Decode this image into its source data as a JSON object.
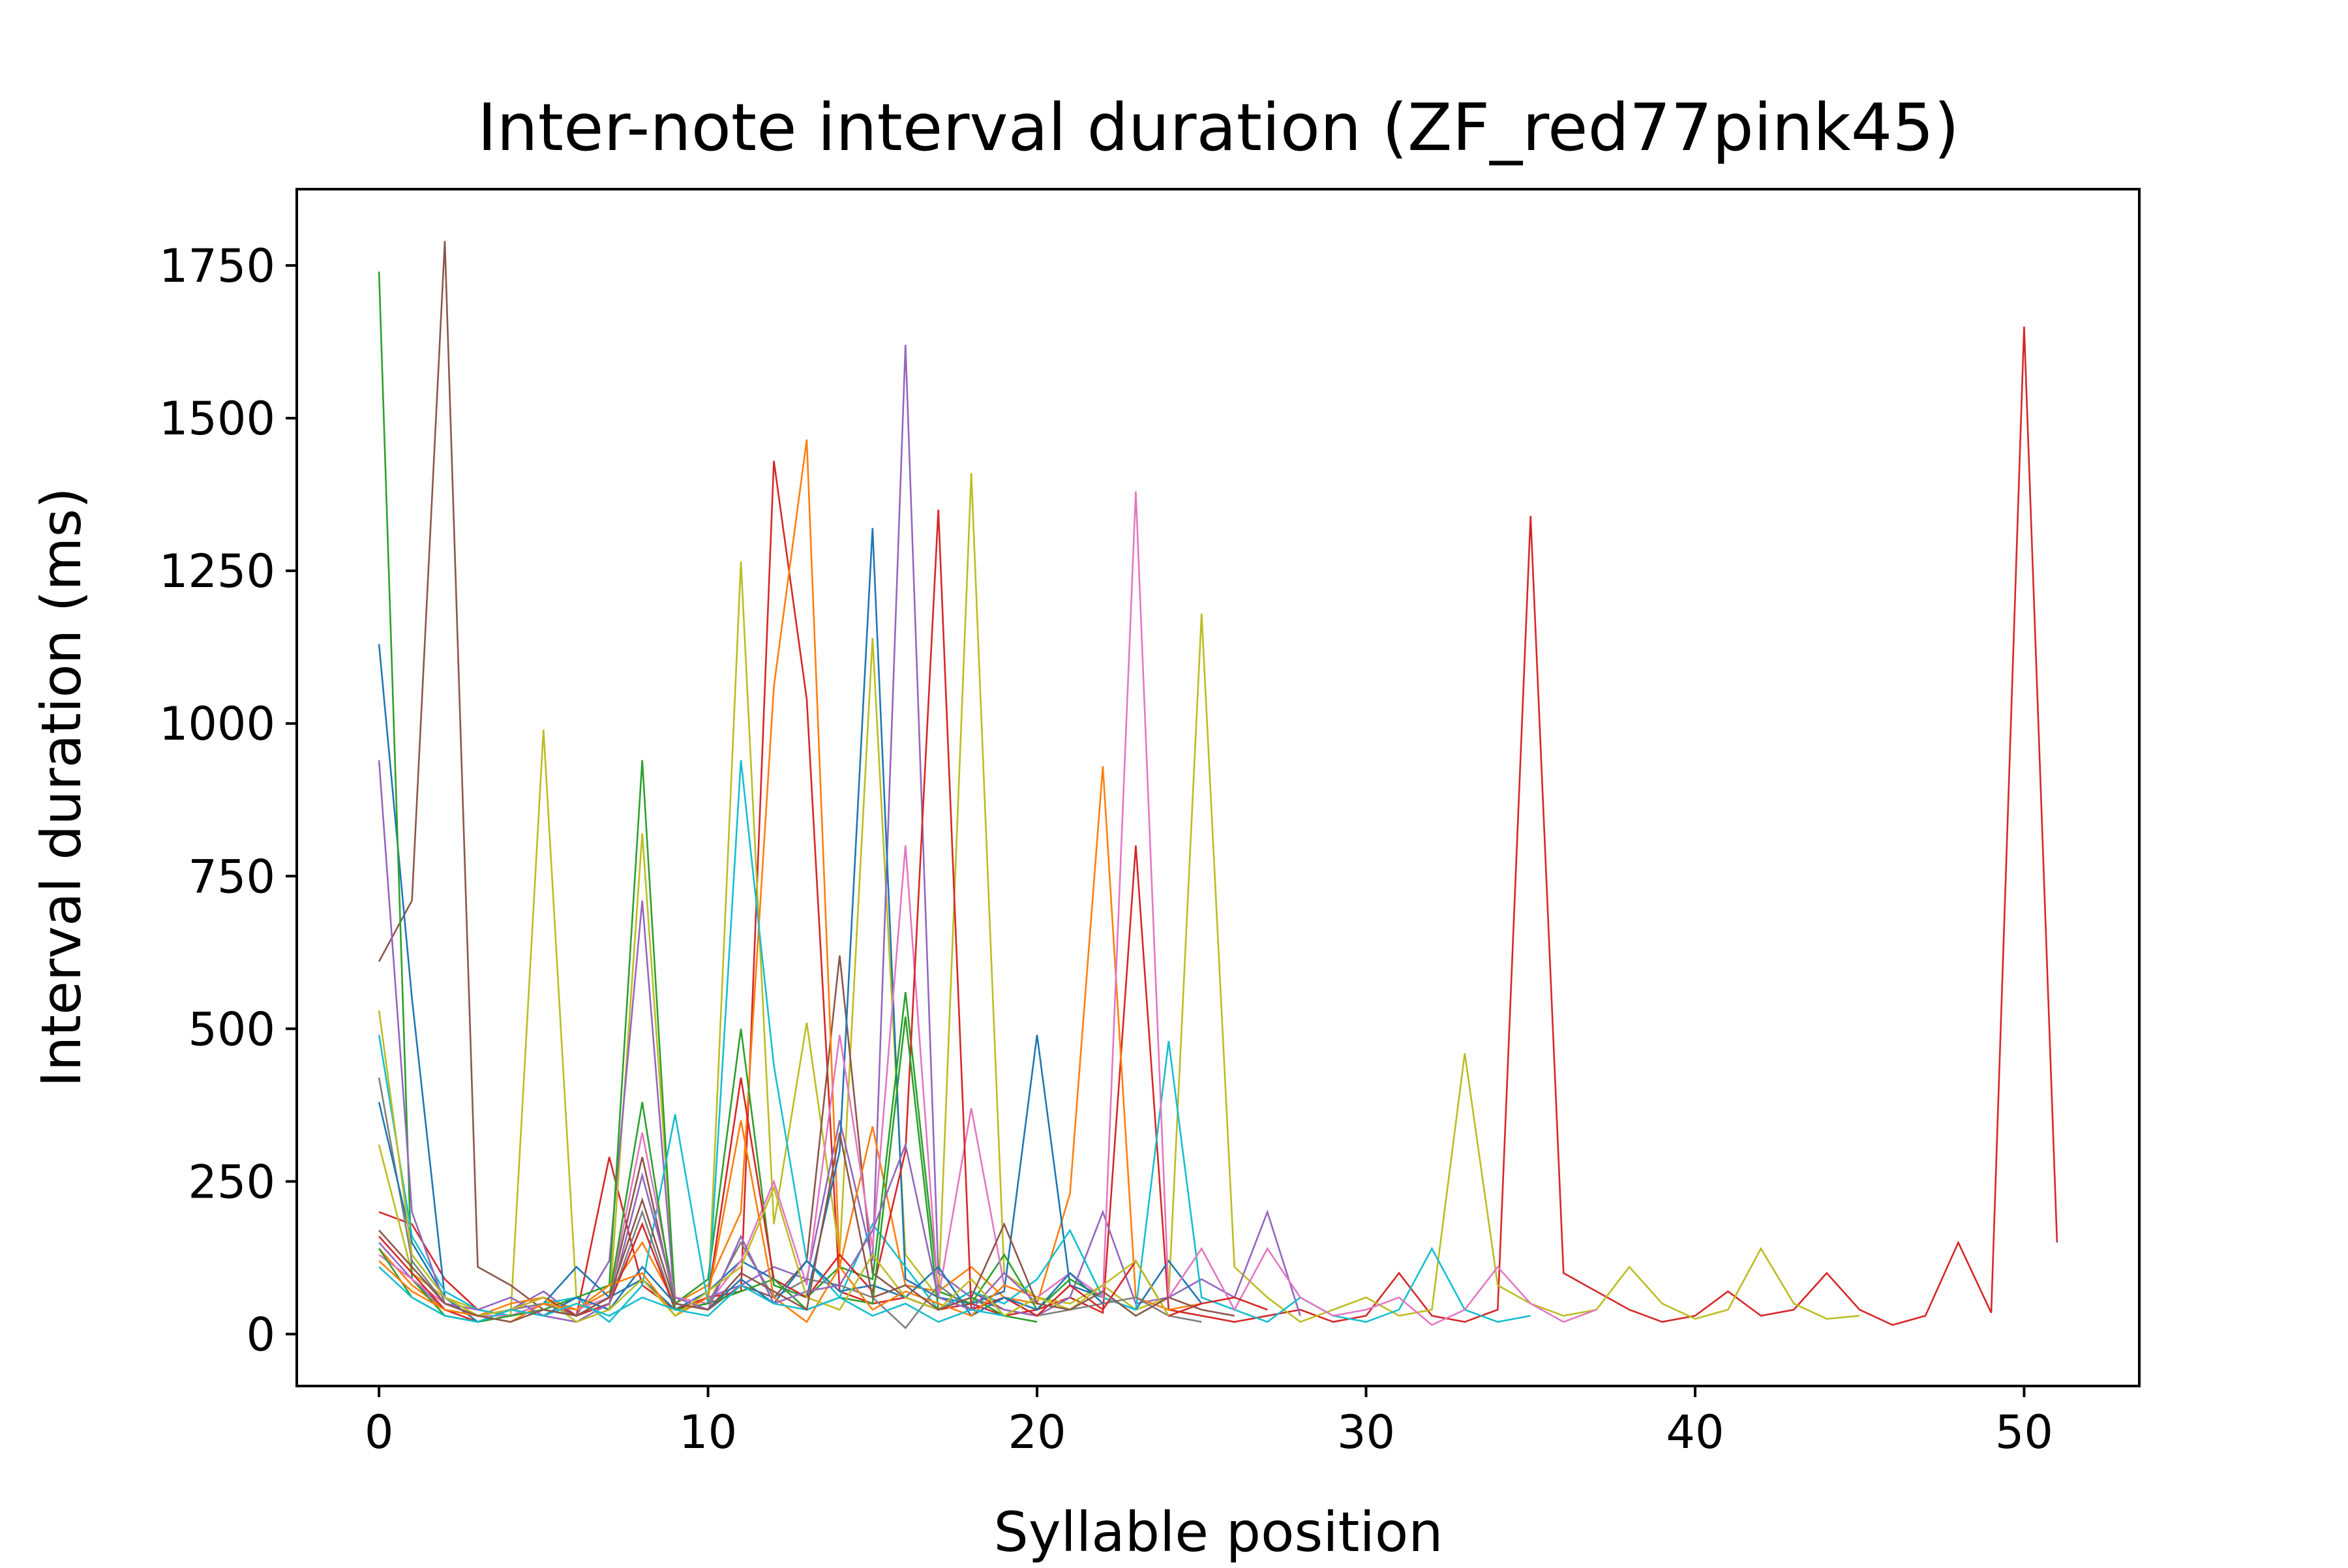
{
  "chart_data": {
    "type": "line",
    "title": "Inter-note interval duration (ZF_red77pink45)",
    "xlabel": "Syllable position",
    "ylabel": "Interval duration (ms)",
    "xlim": [
      -2.5,
      53.5
    ],
    "ylim": [
      -85,
      1875
    ],
    "xticks": [
      0,
      10,
      20,
      30,
      40,
      50
    ],
    "yticks": [
      0,
      250,
      500,
      750,
      1000,
      1250,
      1500,
      1750
    ],
    "grid": false,
    "legend": "none",
    "series_colors": [
      "#1f77b4",
      "#ff7f0e",
      "#2ca02c",
      "#d62728",
      "#9467bd",
      "#8c564b",
      "#e377c2",
      "#7f7f7f",
      "#bcbd22",
      "#17becf"
    ],
    "series": [
      {
        "color": "#d62728",
        "x": [
          0,
          1,
          2,
          3,
          4,
          5,
          6,
          7,
          8,
          9,
          10,
          11,
          12,
          13,
          14,
          15,
          16,
          17,
          18,
          19,
          20,
          21,
          22,
          23,
          24,
          25,
          26,
          27,
          28,
          29,
          30,
          31,
          32,
          33,
          34,
          35,
          36,
          37,
          38,
          39,
          40,
          41,
          42,
          43,
          44,
          45,
          46,
          47,
          48,
          49,
          50,
          51
        ],
        "values": [
          200,
          180,
          90,
          40,
          30,
          50,
          30,
          290,
          80,
          40,
          60,
          70,
          1430,
          1040,
          70,
          50,
          60,
          40,
          50,
          30,
          40,
          60,
          35,
          800,
          40,
          30,
          20,
          30,
          40,
          20,
          30,
          100,
          30,
          20,
          40,
          1340,
          100,
          70,
          40,
          20,
          30,
          70,
          30,
          40,
          100,
          40,
          15,
          30,
          150,
          35,
          1650,
          150
        ]
      },
      {
        "color": "#bcbd22",
        "x": [
          0,
          1,
          2,
          3,
          4,
          5,
          6,
          7,
          8,
          9,
          10,
          11,
          12,
          13,
          14,
          15,
          16,
          17,
          18,
          19,
          20,
          21,
          22,
          23,
          24,
          25,
          26,
          27,
          28,
          29,
          30,
          31,
          32,
          33,
          34,
          35,
          36,
          37,
          38,
          39,
          40,
          41,
          42,
          43,
          44,
          45
        ],
        "values": [
          310,
          100,
          60,
          40,
          30,
          990,
          60,
          40,
          820,
          60,
          50,
          1265,
          180,
          510,
          130,
          1140,
          130,
          60,
          1410,
          100,
          60,
          50,
          80,
          40,
          60,
          1180,
          110,
          60,
          20,
          40,
          60,
          30,
          40,
          460,
          80,
          50,
          30,
          40,
          110,
          50,
          25,
          40,
          140,
          50,
          25,
          30
        ]
      },
      {
        "color": "#8c564b",
        "x": [
          0,
          1,
          2,
          3,
          4,
          5,
          6,
          7,
          8,
          9,
          10,
          11,
          12,
          13,
          14,
          15,
          16,
          17,
          18,
          19,
          20
        ],
        "values": [
          610,
          710,
          1790,
          110,
          80,
          40,
          30,
          60,
          290,
          50,
          40,
          80,
          60,
          120,
          620,
          100,
          60,
          40,
          70,
          40,
          30
        ]
      },
      {
        "color": "#9467bd",
        "x": [
          0,
          1,
          2,
          3,
          4,
          5,
          6,
          7,
          8,
          9,
          10,
          11,
          12,
          13,
          14,
          15,
          16,
          17,
          18,
          19,
          20,
          21,
          22,
          23,
          24,
          25,
          26,
          27,
          28
        ],
        "values": [
          150,
          90,
          40,
          30,
          40,
          70,
          30,
          120,
          710,
          40,
          60,
          80,
          110,
          90,
          350,
          120,
          1620,
          100,
          60,
          40,
          30,
          60,
          200,
          50,
          60,
          90,
          60,
          200,
          30
        ]
      },
      {
        "color": "#ff7f0e",
        "x": [
          0,
          1,
          2,
          3,
          4,
          5,
          6,
          7,
          8,
          9,
          10,
          11,
          12,
          13,
          14,
          15,
          16,
          17,
          18,
          19,
          20,
          21,
          22,
          23,
          24,
          25
        ],
        "values": [
          140,
          80,
          40,
          30,
          50,
          60,
          40,
          70,
          150,
          50,
          80,
          200,
          1060,
          1465,
          110,
          340,
          80,
          70,
          110,
          60,
          50,
          230,
          930,
          60,
          40,
          50
        ]
      },
      {
        "color": "#1f77b4",
        "x": [
          0,
          1,
          2,
          3,
          4,
          5,
          6,
          7,
          8,
          9,
          10,
          11,
          12,
          13,
          14,
          15,
          16,
          17,
          18,
          19,
          20,
          21,
          22,
          23,
          24,
          25
        ],
        "values": [
          1130,
          550,
          60,
          30,
          40,
          50,
          110,
          60,
          90,
          40,
          70,
          120,
          90,
          60,
          300,
          1320,
          90,
          60,
          50,
          70,
          490,
          80,
          60,
          40,
          120,
          50
        ]
      },
      {
        "color": "#2ca02c",
        "x": [
          0,
          1,
          2,
          3,
          4,
          5,
          6,
          7,
          8,
          9,
          10,
          11,
          12,
          13,
          14,
          15,
          16,
          17,
          18,
          19,
          20,
          21,
          22
        ],
        "values": [
          1740,
          90,
          30,
          20,
          30,
          40,
          60,
          80,
          940,
          50,
          90,
          500,
          80,
          60,
          110,
          90,
          560,
          70,
          50,
          130,
          40,
          90,
          60
        ]
      },
      {
        "color": "#17becf",
        "x": [
          0,
          1,
          2,
          3,
          4,
          5,
          6,
          7,
          8,
          9,
          10,
          11,
          12,
          13,
          14,
          15,
          16,
          17,
          18,
          19,
          20,
          21,
          22,
          23,
          24,
          25,
          26,
          27,
          28,
          29,
          30,
          31,
          32,
          33,
          34,
          35
        ],
        "values": [
          490,
          160,
          70,
          40,
          30,
          50,
          60,
          20,
          80,
          360,
          50,
          940,
          440,
          120,
          60,
          180,
          110,
          40,
          70,
          50,
          90,
          170,
          60,
          40,
          480,
          60,
          40,
          20,
          60,
          30,
          20,
          40,
          140,
          40,
          20,
          30
        ]
      },
      {
        "color": "#e377c2",
        "x": [
          0,
          1,
          2,
          3,
          4,
          5,
          6,
          7,
          8,
          9,
          10,
          11,
          12,
          13,
          14,
          15,
          16,
          17,
          18,
          19,
          20,
          21,
          22,
          23,
          24,
          25,
          26,
          27,
          28,
          29,
          30,
          31,
          32,
          33,
          34,
          35,
          36,
          37
        ],
        "values": [
          130,
          90,
          50,
          30,
          30,
          50,
          40,
          60,
          330,
          60,
          50,
          120,
          250,
          80,
          490,
          140,
          800,
          60,
          370,
          80,
          60,
          100,
          60,
          1380,
          60,
          140,
          40,
          140,
          60,
          30,
          40,
          60,
          15,
          40,
          110,
          50,
          20,
          40
        ]
      },
      {
        "color": "#7f7f7f",
        "x": [
          0,
          1,
          2,
          3,
          4,
          5,
          6,
          7,
          8,
          9,
          10,
          11,
          12,
          13,
          14,
          15,
          16,
          17,
          18,
          19,
          20,
          21,
          22,
          23,
          24,
          25
        ],
        "values": [
          420,
          120,
          50,
          30,
          40,
          50,
          30,
          50,
          200,
          40,
          50,
          150,
          60,
          90,
          80,
          60,
          10,
          80,
          40,
          60,
          30,
          40,
          50,
          60,
          30,
          20
        ]
      },
      {
        "color": "#d62728",
        "x": [
          0,
          1,
          2,
          3,
          4,
          5,
          6,
          7,
          8,
          9,
          10,
          11,
          12,
          13,
          14,
          15,
          16,
          17,
          18,
          19,
          20,
          21,
          22,
          23,
          24,
          25,
          26,
          27
        ],
        "values": [
          160,
          100,
          40,
          20,
          40,
          60,
          30,
          50,
          180,
          40,
          60,
          420,
          90,
          60,
          130,
          70,
          300,
          1350,
          40,
          60,
          30,
          80,
          40,
          120,
          30,
          50,
          60,
          40
        ]
      },
      {
        "color": "#1f77b4",
        "x": [
          0,
          1,
          2,
          3,
          4,
          5,
          6,
          7,
          8,
          9,
          10,
          11,
          12,
          13,
          14,
          15,
          16,
          17,
          18,
          19,
          20,
          21,
          22
        ],
        "values": [
          380,
          150,
          60,
          20,
          40,
          30,
          60,
          40,
          110,
          50,
          40,
          90,
          50,
          120,
          70,
          80,
          60,
          110,
          30,
          60,
          40,
          100,
          50
        ]
      },
      {
        "color": "#2ca02c",
        "x": [
          0,
          1,
          2,
          3,
          4,
          5,
          6,
          7,
          8,
          9,
          10,
          11,
          12,
          13,
          14,
          15,
          16,
          17,
          18,
          19,
          20
        ],
        "values": [
          140,
          60,
          30,
          20,
          30,
          40,
          30,
          60,
          380,
          40,
          50,
          70,
          90,
          40,
          60,
          50,
          520,
          40,
          60,
          30,
          20
        ]
      },
      {
        "color": "#ff7f0e",
        "x": [
          0,
          1,
          2,
          3,
          4,
          5,
          6,
          7,
          8,
          9,
          10,
          11,
          12,
          13,
          14,
          15,
          16,
          17,
          18,
          19,
          20,
          21
        ],
        "values": [
          120,
          70,
          40,
          30,
          20,
          50,
          40,
          80,
          100,
          30,
          60,
          350,
          60,
          20,
          110,
          40,
          70,
          50,
          30,
          80,
          60,
          40
        ]
      },
      {
        "color": "#9467bd",
        "x": [
          0,
          1,
          2,
          3,
          4,
          5,
          6,
          7,
          8,
          9,
          10,
          11,
          12,
          13,
          14,
          15,
          16,
          17,
          18,
          19,
          20
        ],
        "values": [
          940,
          200,
          50,
          40,
          60,
          30,
          20,
          50,
          260,
          60,
          40,
          160,
          50,
          70,
          80,
          170,
          310,
          60,
          40,
          100,
          50
        ]
      },
      {
        "color": "#bcbd22",
        "x": [
          0,
          1,
          2,
          3,
          4,
          5,
          6,
          7,
          8,
          9,
          10,
          11,
          12,
          13,
          14,
          15,
          16,
          17,
          18,
          19,
          20,
          21,
          22,
          23,
          24
        ],
        "values": [
          530,
          130,
          60,
          30,
          40,
          60,
          20,
          40,
          90,
          30,
          70,
          110,
          240,
          60,
          40,
          130,
          60,
          40,
          90,
          30,
          60,
          40,
          80,
          120,
          30
        ]
      },
      {
        "color": "#17becf",
        "x": [
          0,
          1,
          2,
          3,
          4,
          5,
          6,
          7,
          8,
          9,
          10,
          11,
          12,
          13,
          14,
          15,
          16,
          17,
          18,
          19
        ],
        "values": [
          110,
          60,
          30,
          20,
          40,
          30,
          50,
          30,
          60,
          40,
          30,
          80,
          50,
          40,
          60,
          30,
          50,
          20,
          40,
          30
        ]
      },
      {
        "color": "#8c564b",
        "x": [
          0,
          1,
          2,
          3,
          4,
          5,
          6,
          7,
          8,
          9,
          10,
          11,
          12,
          13,
          14,
          15,
          16,
          17,
          18,
          19,
          20,
          21,
          22,
          23,
          24,
          25,
          26
        ],
        "values": [
          170,
          110,
          50,
          30,
          20,
          40,
          30,
          60,
          220,
          50,
          40,
          100,
          70,
          40,
          330,
          60,
          80,
          40,
          60,
          180,
          50,
          40,
          70,
          30,
          60,
          40,
          30
        ]
      }
    ]
  }
}
